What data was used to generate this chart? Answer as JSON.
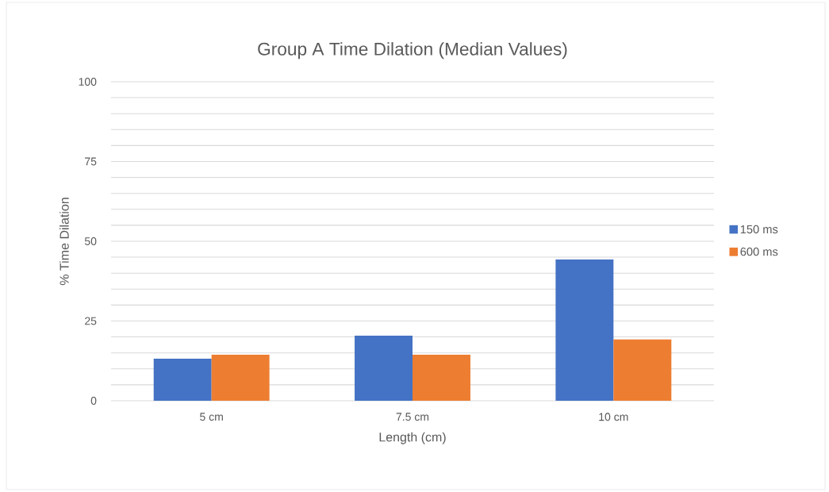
{
  "chart_data": {
    "type": "bar",
    "title": "Group A Time Dilation (Median Values)",
    "xlabel": "Length (cm)",
    "ylabel": "% Time Dilation",
    "categories": [
      "5 cm",
      "7.5 cm",
      "10 cm"
    ],
    "series": [
      {
        "name": "150 ms",
        "color": "#4472c4",
        "values": [
          13.2,
          20.4,
          44.3
        ]
      },
      {
        "name": "600 ms",
        "color": "#ed7d31",
        "values": [
          14.4,
          14.4,
          19.2
        ]
      }
    ],
    "ylim": [
      0,
      100
    ],
    "yticks": [
      0,
      {
        "value": 5,
        "label": null
      },
      {
        "value": 10,
        "label": null
      },
      {
        "value": 15,
        "label": null
      },
      {
        "value": 20,
        "label": null
      },
      25,
      {
        "value": 30,
        "label": null
      },
      {
        "value": 35,
        "label": null
      },
      {
        "value": 40,
        "label": null
      },
      {
        "value": 45,
        "label": null
      },
      50,
      {
        "value": 55,
        "label": null
      },
      {
        "value": 60,
        "label": null
      },
      {
        "value": 65,
        "label": null
      },
      {
        "value": 70,
        "label": null
      },
      75,
      {
        "value": 80,
        "label": null
      },
      {
        "value": 85,
        "label": null
      },
      {
        "value": 90,
        "label": null
      },
      {
        "value": 95,
        "label": null
      },
      100
    ],
    "grid": "y",
    "legend": "right"
  }
}
